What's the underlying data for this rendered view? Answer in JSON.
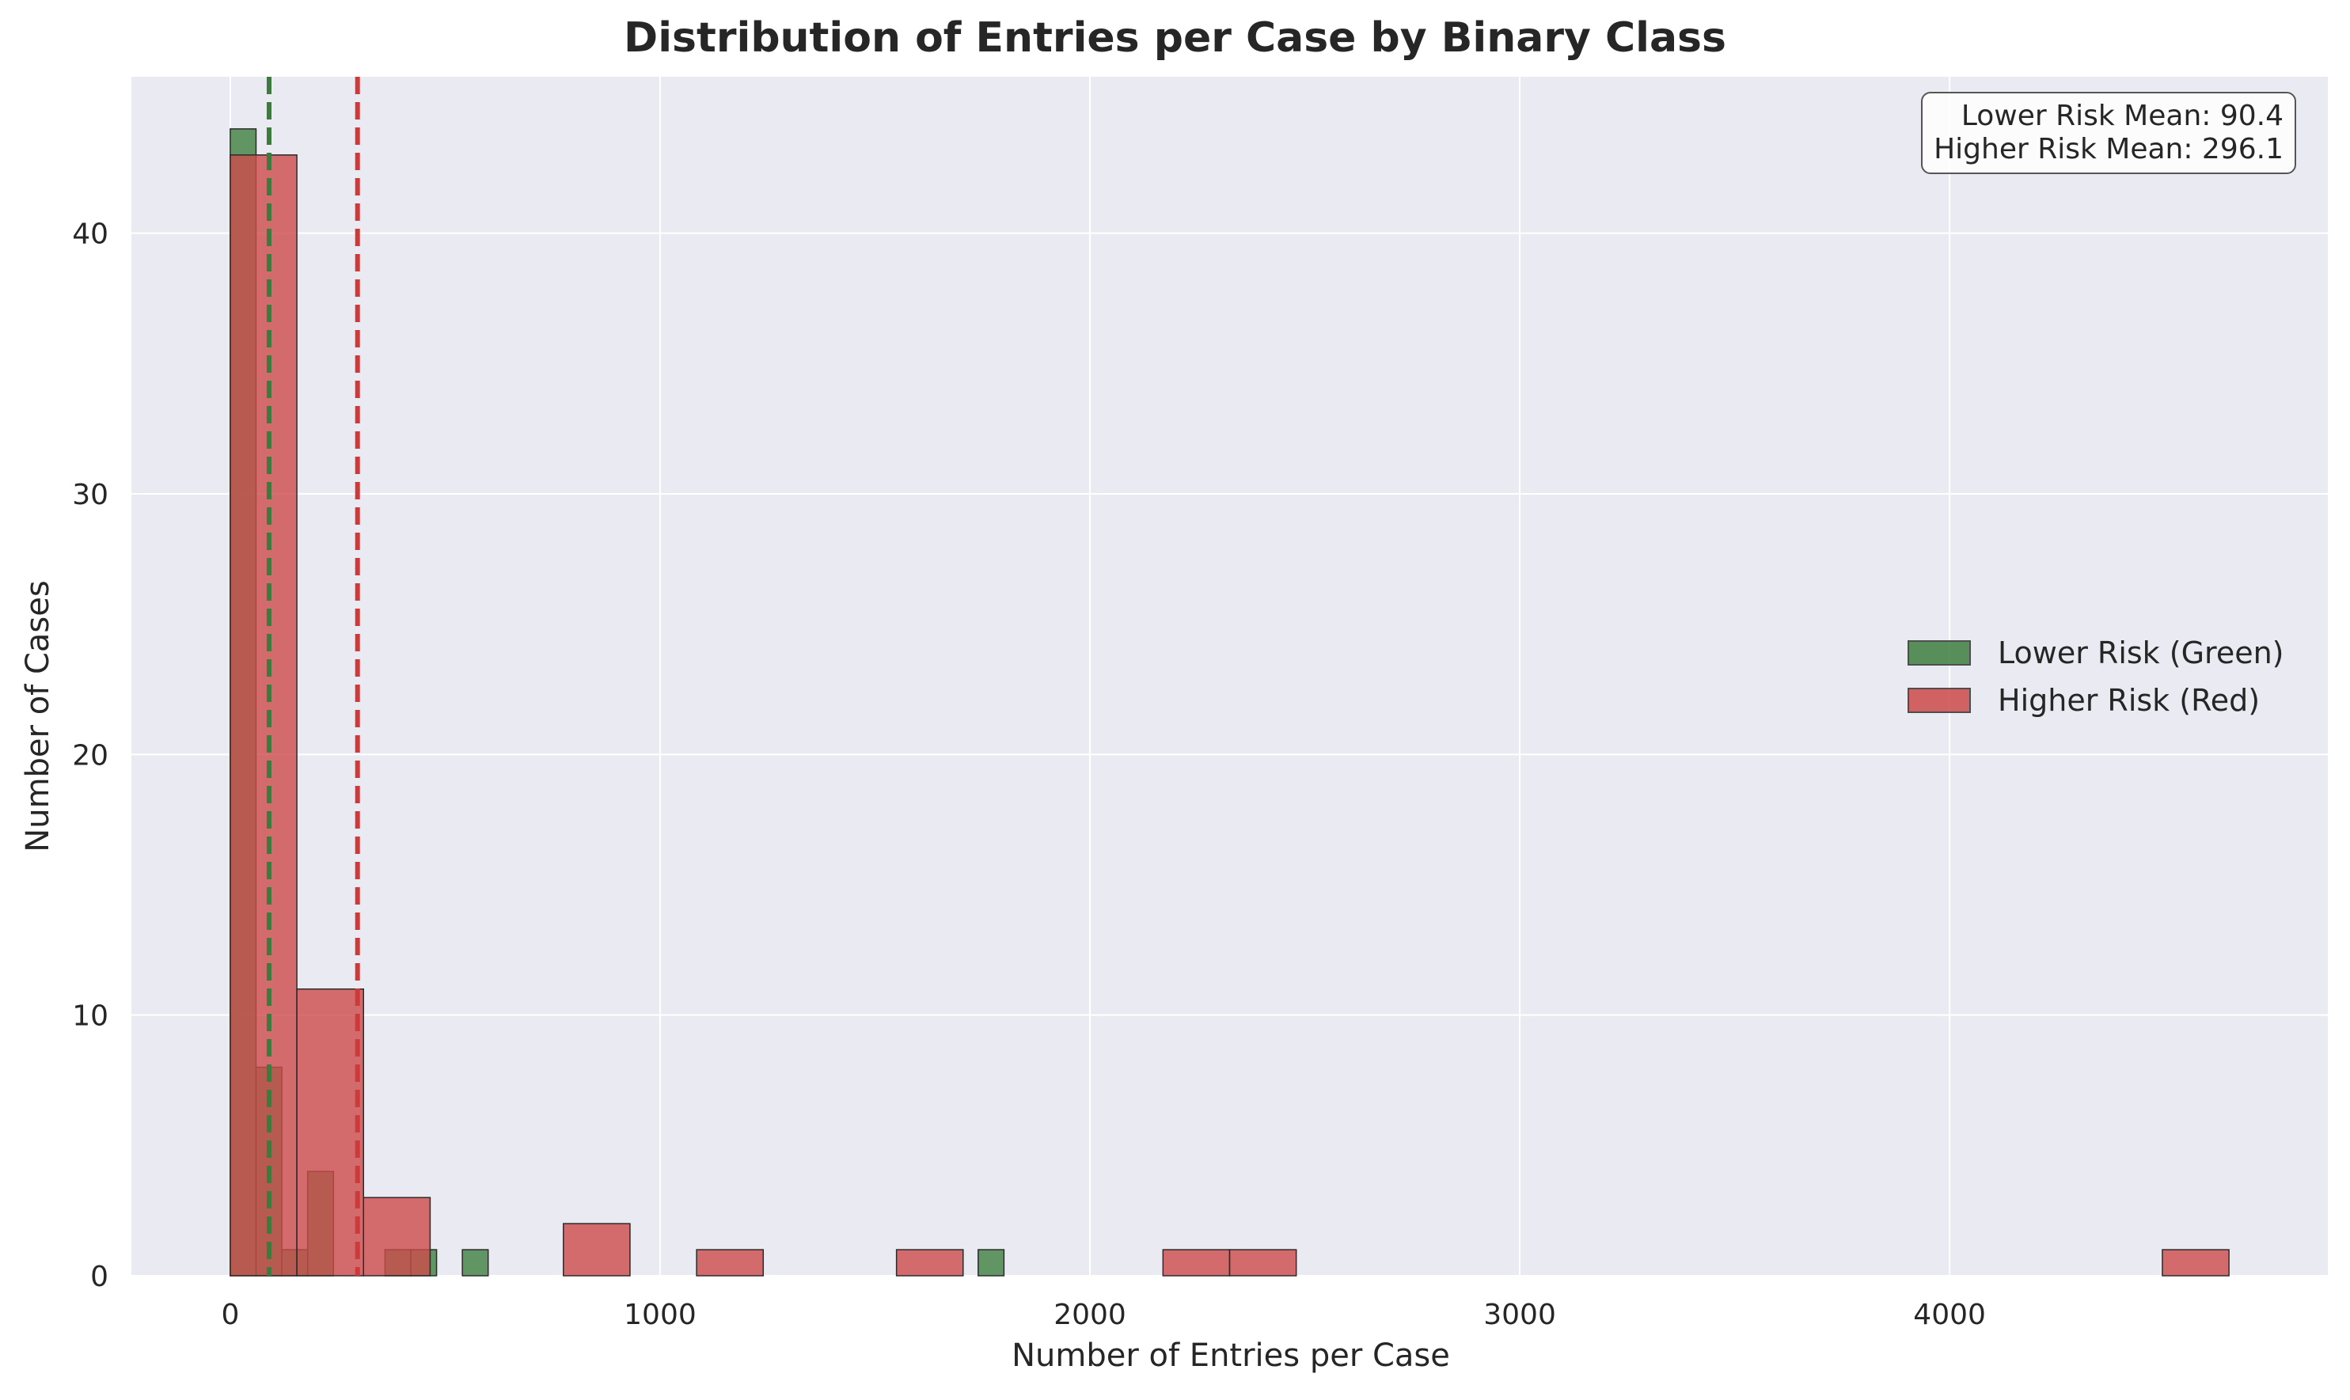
{
  "chart_data": {
    "type": "histogram",
    "title": "Distribution of Entries per Case by Binary Class",
    "xlabel": "Number of Entries per Case",
    "ylabel": "Number of Cases",
    "xlim": [
      -230,
      4880
    ],
    "ylim": [
      0,
      46
    ],
    "x_ticks": [
      0,
      1000,
      2000,
      3000,
      4000
    ],
    "y_ticks": [
      0,
      10,
      20,
      30,
      40
    ],
    "grid": true,
    "legend_position": "center-right",
    "series": [
      {
        "name": "Lower Risk (Green)",
        "color": "#3f7f3f",
        "bins": [
          {
            "x0": 0,
            "x1": 60,
            "count": 44
          },
          {
            "x0": 60,
            "x1": 120,
            "count": 8
          },
          {
            "x0": 120,
            "x1": 180,
            "count": 1
          },
          {
            "x0": 180,
            "x1": 240,
            "count": 4
          },
          {
            "x0": 360,
            "x1": 420,
            "count": 1
          },
          {
            "x0": 420,
            "x1": 480,
            "count": 1
          },
          {
            "x0": 540,
            "x1": 600,
            "count": 1
          },
          {
            "x0": 1740,
            "x1": 1800,
            "count": 1
          }
        ],
        "mean": 90.4
      },
      {
        "name": "Higher Risk (Red)",
        "color": "#cd4b4b",
        "bins": [
          {
            "x0": 0,
            "x1": 155,
            "count": 43
          },
          {
            "x0": 155,
            "x1": 310,
            "count": 11
          },
          {
            "x0": 310,
            "x1": 465,
            "count": 3
          },
          {
            "x0": 775,
            "x1": 930,
            "count": 2
          },
          {
            "x0": 1085,
            "x1": 1240,
            "count": 1
          },
          {
            "x0": 1550,
            "x1": 1705,
            "count": 1
          },
          {
            "x0": 2170,
            "x1": 2325,
            "count": 1
          },
          {
            "x0": 2325,
            "x1": 2480,
            "count": 1
          },
          {
            "x0": 4495,
            "x1": 4650,
            "count": 1
          }
        ],
        "mean": 296.1
      }
    ],
    "annotation": {
      "line1": "Lower Risk Mean: 90.4",
      "line2": "Higher Risk Mean: 296.1"
    }
  }
}
